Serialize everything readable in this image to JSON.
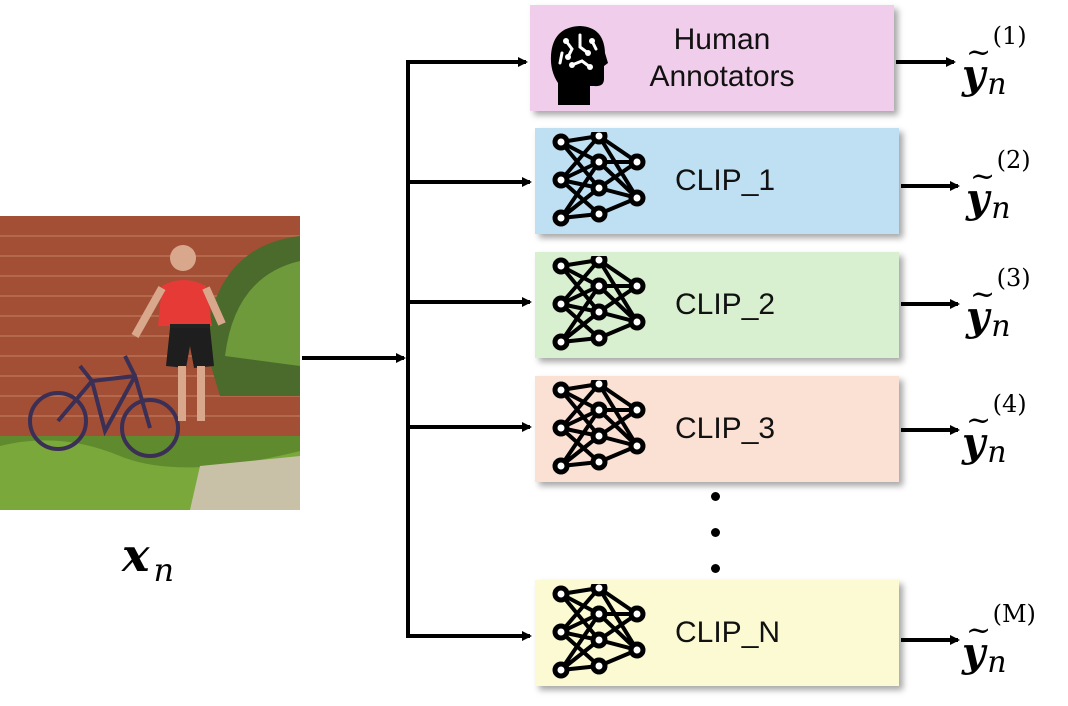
{
  "input": {
    "image_description": "photo of a man with a bicycle in front of a brick bridge",
    "var": "x",
    "sub": "n"
  },
  "annotators": [
    {
      "line1": "Human",
      "line2": "Annotators",
      "color": "#f0cdea",
      "sup": "(1)"
    },
    {
      "label": "CLIP_1",
      "color": "#bfe0f2",
      "sup": "(2)"
    },
    {
      "label": "CLIP_2",
      "color": "#d8f0d0",
      "sup": "(3)"
    },
    {
      "label": "CLIP_3",
      "color": "#fbe0d4",
      "sup": "(4)"
    },
    {
      "label": "CLIP_N",
      "color": "#fbfad3",
      "sup": "(M)"
    }
  ],
  "output": {
    "var": "y",
    "sub": "n"
  }
}
